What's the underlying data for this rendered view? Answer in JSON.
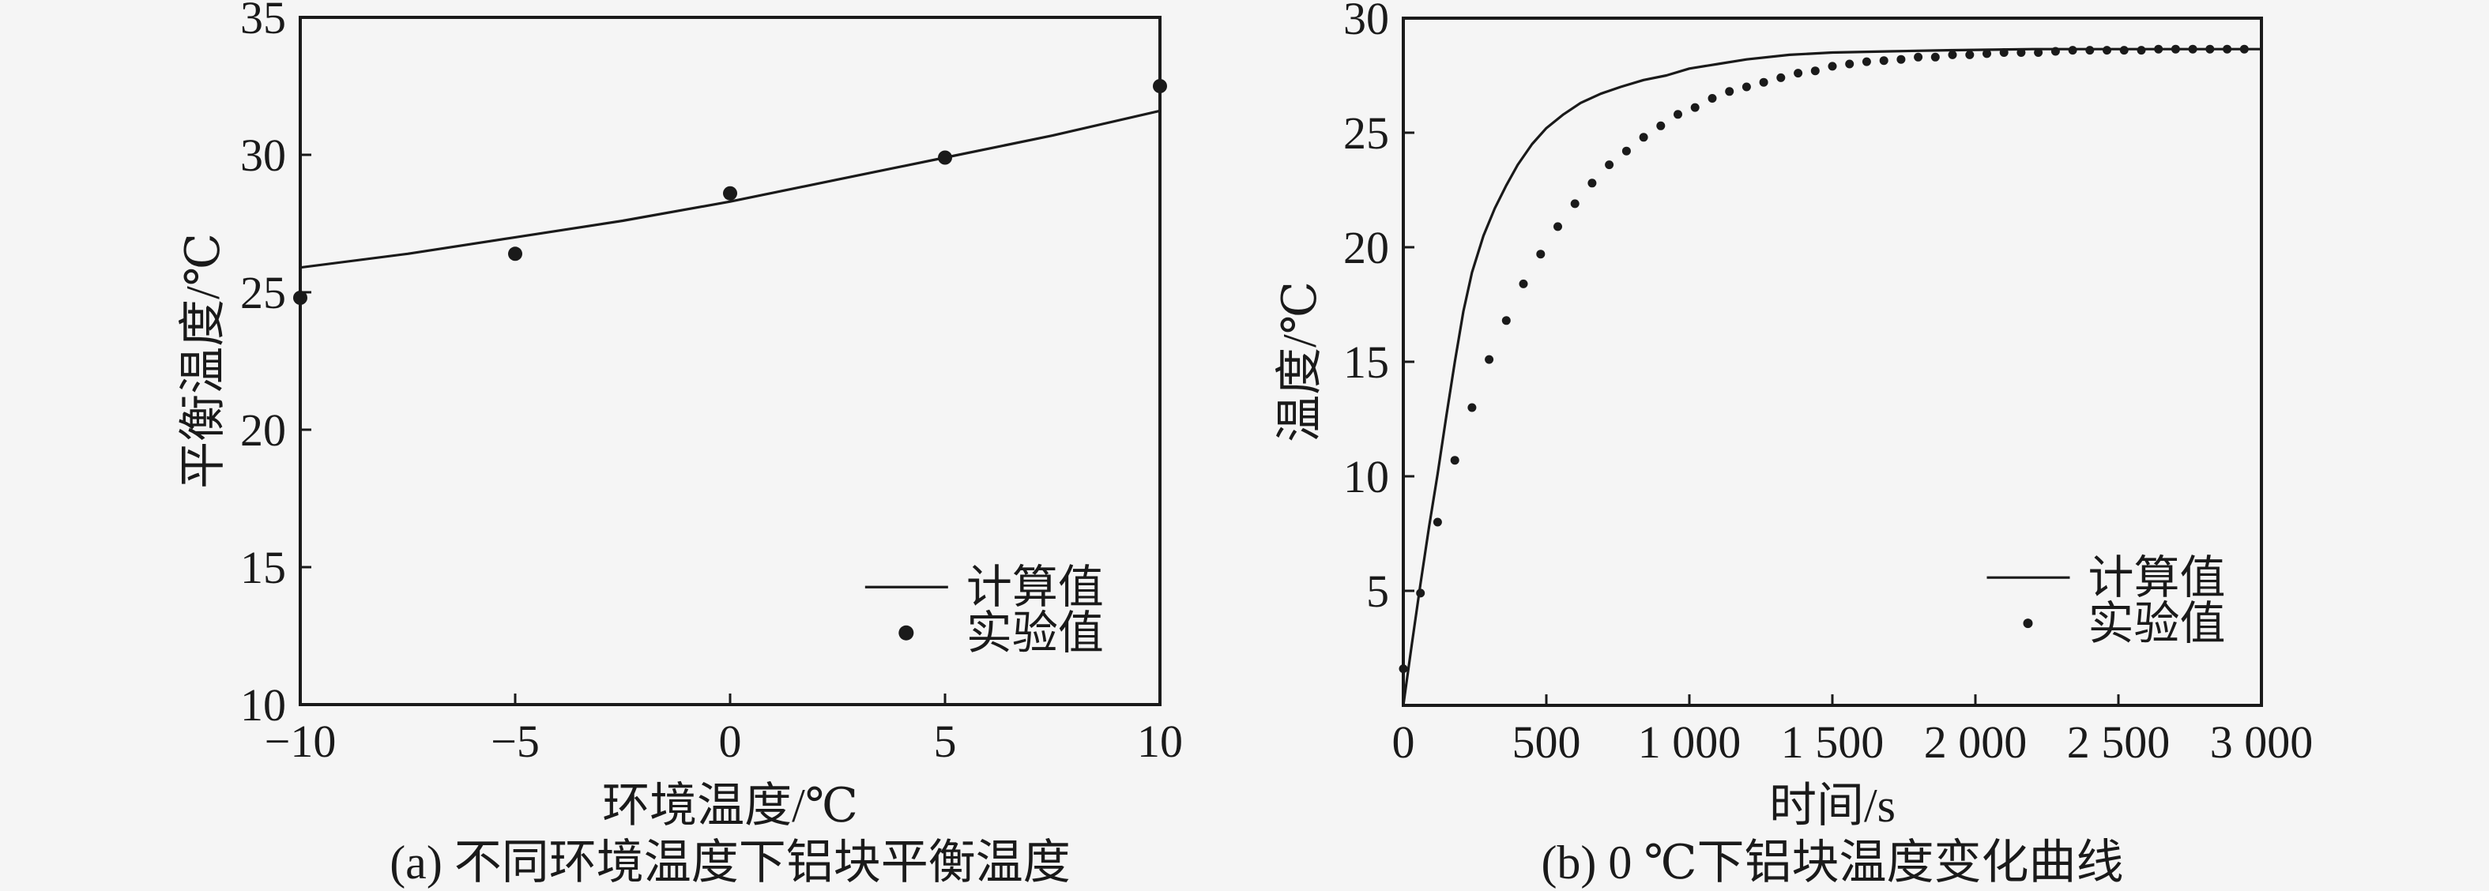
{
  "figure": {
    "background": "#f5f5f5",
    "ink": "#1a1a1a"
  },
  "chart_data": [
    {
      "type": "line+scatter",
      "panel": "a",
      "title": "(a) 不同环境温度下铝块平衡温度",
      "xlabel": "环境温度/℃",
      "ylabel": "平衡温度/℃",
      "xlim": [
        -10,
        10
      ],
      "ylim": [
        10,
        35
      ],
      "x_ticks": [
        -10,
        -5,
        0,
        5,
        10
      ],
      "x_tick_labels": [
        "−10",
        "−5",
        "0",
        "5",
        "10"
      ],
      "y_ticks": [
        10,
        15,
        20,
        25,
        30,
        35
      ],
      "y_tick_labels": [
        "10",
        "15",
        "20",
        "25",
        "30",
        "35"
      ],
      "grid": false,
      "legend_position": "lower-right-inside",
      "legend_pos": [
        0.657,
        0.829
      ],
      "series": [
        {
          "name": "计算值",
          "kind": "line",
          "x": [
            -10,
            -7.5,
            -5,
            -2.5,
            0,
            2.5,
            5,
            7.5,
            10
          ],
          "y": [
            25.9,
            26.4,
            27.0,
            27.6,
            28.3,
            29.1,
            29.9,
            30.7,
            31.6
          ]
        },
        {
          "name": "实验值",
          "kind": "scatter",
          "x": [
            -10,
            -5,
            0,
            5,
            10
          ],
          "y": [
            24.8,
            26.4,
            28.6,
            29.9,
            32.5
          ]
        }
      ]
    },
    {
      "type": "line+scatter",
      "panel": "b",
      "title": "(b) 0 ℃下铝块温度变化曲线",
      "xlabel": "时间/s",
      "ylabel": "温度/℃",
      "xlim": [
        0,
        3000
      ],
      "ylim": [
        0,
        30
      ],
      "x_ticks": [
        0,
        500,
        1000,
        1500,
        2000,
        2500,
        3000
      ],
      "x_tick_labels": [
        "0",
        "500",
        "1 000",
        "1 500",
        "2 000",
        "2 500",
        "3 000"
      ],
      "y_ticks": [
        5,
        10,
        15,
        20,
        25,
        30
      ],
      "y_tick_labels": [
        "5",
        "10",
        "15",
        "20",
        "25",
        "30"
      ],
      "grid": false,
      "legend_position": "center-right-inside",
      "legend_pos": [
        0.68,
        0.814
      ],
      "series": [
        {
          "name": "计算值",
          "kind": "line",
          "x": [
            0,
            30,
            60,
            90,
            120,
            150,
            180,
            210,
            240,
            280,
            320,
            360,
            400,
            450,
            500,
            560,
            620,
            690,
            760,
            840,
            920,
            1000,
            1100,
            1200,
            1350,
            1500,
            1700,
            1900,
            2200,
            2600,
            3000
          ],
          "y": [
            0,
            2.7,
            5.3,
            7.8,
            10.1,
            12.6,
            15.0,
            17.2,
            18.9,
            20.5,
            21.7,
            22.7,
            23.6,
            24.5,
            25.2,
            25.8,
            26.3,
            26.7,
            27.0,
            27.3,
            27.5,
            27.8,
            28.0,
            28.2,
            28.4,
            28.5,
            28.55,
            28.6,
            28.65,
            28.65,
            28.65
          ]
        },
        {
          "name": "实验值",
          "kind": "scatter",
          "x": [
            0,
            60,
            120,
            180,
            240,
            300,
            360,
            420,
            480,
            540,
            600,
            660,
            720,
            780,
            840,
            900,
            960,
            1020,
            1080,
            1140,
            1200,
            1260,
            1320,
            1380,
            1440,
            1500,
            1560,
            1620,
            1680,
            1740,
            1800,
            1860,
            1920,
            1980,
            2040,
            2100,
            2160,
            2220,
            2280,
            2340,
            2400,
            2460,
            2520,
            2580,
            2640,
            2700,
            2760,
            2820,
            2880,
            2940
          ],
          "y": [
            1.6,
            4.9,
            8.0,
            10.7,
            13.0,
            15.1,
            16.8,
            18.4,
            19.7,
            20.9,
            21.9,
            22.8,
            23.6,
            24.2,
            24.8,
            25.3,
            25.8,
            26.1,
            26.5,
            26.8,
            27.0,
            27.2,
            27.4,
            27.6,
            27.7,
            27.9,
            28.0,
            28.1,
            28.15,
            28.2,
            28.3,
            28.3,
            28.4,
            28.4,
            28.45,
            28.5,
            28.5,
            28.5,
            28.55,
            28.6,
            28.6,
            28.6,
            28.6,
            28.6,
            28.65,
            28.65,
            28.65,
            28.65,
            28.65,
            28.65
          ]
        }
      ]
    }
  ]
}
